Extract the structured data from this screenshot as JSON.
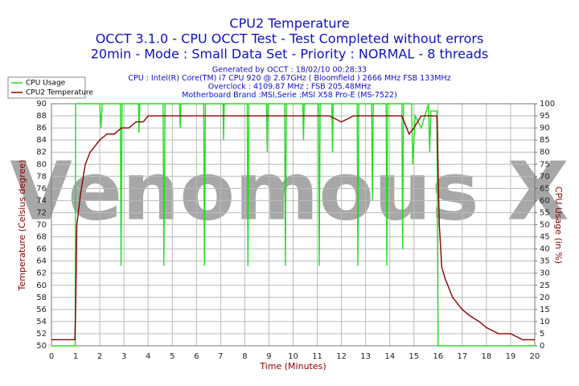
{
  "chart_data": {
    "type": "line",
    "title": "CPU2 Temperature",
    "subtitle": "OCCT 3.1.0 - CPU OCCT Test - Test Completed without errors",
    "subtitle2": "20min - Mode : Small Data Set - Priority : NORMAL - 8 threads",
    "info": [
      "Generated by OCCT : 18/02/10 00:28:33",
      "CPU : Intel(R) Core(TM) i7 CPU 920 @ 2.67GHz ( Bloomfield ) 2666 MHz FSB 133MHz",
      "Overclock : 4109.87 MHz ; FSB 205.48MHz",
      "Motherboard Brand :MSI,Serie :MSI X58 Pro-E (MS-7522)"
    ],
    "watermark": "Venomous X",
    "xlabel": "Time (Minutes)",
    "ylabel": "Temperature (Celsius degree)",
    "y2label": "CPU Usage (in %)",
    "xlim": [
      0,
      20
    ],
    "xticks": [
      0,
      1,
      2,
      3,
      4,
      5,
      6,
      7,
      8,
      9,
      10,
      11,
      12,
      13,
      14,
      15,
      16,
      17,
      18,
      19,
      20
    ],
    "ylim": [
      50,
      90
    ],
    "yticks": [
      50,
      52,
      54,
      56,
      58,
      60,
      62,
      64,
      66,
      68,
      70,
      72,
      74,
      76,
      78,
      80,
      82,
      84,
      86,
      88,
      90
    ],
    "y2lim": [
      0,
      100
    ],
    "y2ticks": [
      0,
      5,
      10,
      15,
      20,
      25,
      30,
      35,
      40,
      45,
      50,
      55,
      60,
      65,
      70,
      75,
      80,
      85,
      90,
      95,
      100
    ],
    "grid": true,
    "legend": "top-left",
    "series": [
      {
        "name": "CPU Usage",
        "color": "#22dd22",
        "axis": "y2",
        "x": [
          0,
          0.98,
          1.0,
          2.0,
          2.05,
          2.1,
          2.85,
          2.88,
          2.92,
          3.6,
          3.62,
          3.66,
          4.62,
          4.65,
          4.7,
          5.3,
          5.33,
          5.36,
          6.3,
          6.33,
          6.37,
          7.1,
          7.12,
          7.15,
          8.1,
          8.13,
          8.17,
          8.9,
          8.93,
          8.96,
          9.65,
          9.68,
          9.72,
          10.4,
          10.43,
          10.46,
          11.05,
          11.08,
          11.12,
          11.6,
          11.63,
          11.66,
          12.65,
          12.68,
          12.72,
          13.25,
          13.28,
          13.32,
          13.85,
          13.88,
          13.92,
          14.5,
          14.53,
          14.57,
          14.9,
          14.95,
          15.05,
          15.3,
          15.6,
          15.65,
          15.7,
          15.95,
          16.0,
          20
        ],
        "values": [
          0,
          0,
          100,
          100,
          90,
          100,
          100,
          33,
          100,
          100,
          88,
          100,
          100,
          33,
          100,
          100,
          90,
          100,
          100,
          33,
          100,
          100,
          85,
          100,
          100,
          33,
          100,
          100,
          80,
          100,
          100,
          33,
          100,
          100,
          85,
          100,
          100,
          33,
          100,
          100,
          80,
          100,
          100,
          33,
          100,
          100,
          60,
          100,
          100,
          33,
          100,
          100,
          40,
          100,
          100,
          75,
          95,
          90,
          100,
          80,
          97,
          97,
          0,
          0
        ]
      },
      {
        "name": "CPU2 Temperature",
        "color": "#8b0000",
        "axis": "y",
        "x": [
          0,
          0.5,
          0.97,
          1.0,
          1.05,
          1.2,
          1.4,
          1.6,
          1.8,
          2.0,
          2.3,
          2.6,
          2.9,
          3.2,
          3.5,
          3.8,
          4.0,
          5,
          6,
          7,
          8,
          9,
          10,
          11,
          11.5,
          12,
          12.5,
          13,
          14,
          14.5,
          14.8,
          15,
          15.3,
          15.7,
          15.95,
          16.05,
          16.15,
          16.3,
          16.6,
          17,
          17.3,
          17.7,
          18,
          18.5,
          19,
          19.5,
          20
        ],
        "values": [
          51,
          51,
          51,
          56,
          70,
          75,
          80,
          82,
          83,
          84,
          85,
          85,
          86,
          86,
          87,
          87,
          88,
          88,
          88,
          88,
          88,
          88,
          88,
          88,
          88,
          87,
          88,
          88,
          88,
          88,
          85,
          86,
          88,
          88,
          88,
          70,
          63,
          61,
          58,
          56,
          55,
          54,
          53,
          52,
          52,
          51,
          51
        ]
      }
    ]
  }
}
